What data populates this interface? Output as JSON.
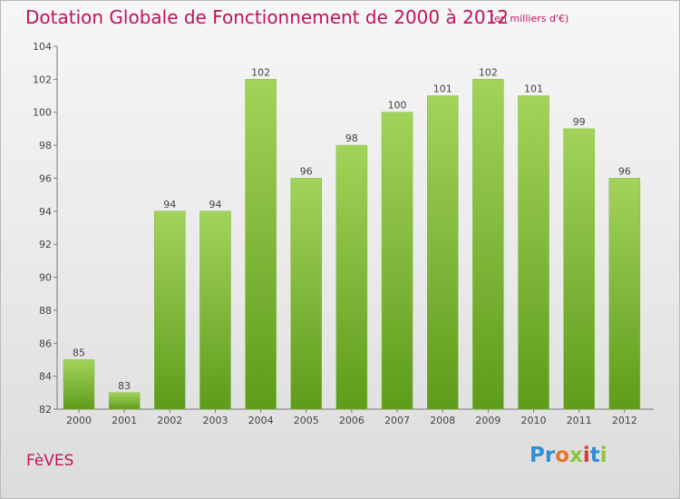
{
  "title": "Dotation Globale de Fonctionnement de 2000 à 2012",
  "subtitle": "(en milliers d'€)",
  "place": "FèVES",
  "logo": {
    "text": "Proxiti"
  },
  "colors": {
    "title": "#c0135b",
    "bar_top": "#9fd155",
    "bar_bottom": "#5f9e1c",
    "axis": "#777777"
  },
  "chart_data": {
    "type": "bar",
    "categories": [
      "2000",
      "2001",
      "2002",
      "2003",
      "2004",
      "2005",
      "2006",
      "2007",
      "2008",
      "2009",
      "2010",
      "2011",
      "2012"
    ],
    "values": [
      85,
      83,
      94,
      94,
      102,
      96,
      98,
      100,
      101,
      102,
      101,
      99,
      96
    ],
    "ylim": [
      82,
      104
    ],
    "yticks": [
      82,
      84,
      86,
      88,
      90,
      92,
      94,
      96,
      98,
      100,
      102,
      104
    ],
    "grid": false,
    "data_labels": true
  }
}
